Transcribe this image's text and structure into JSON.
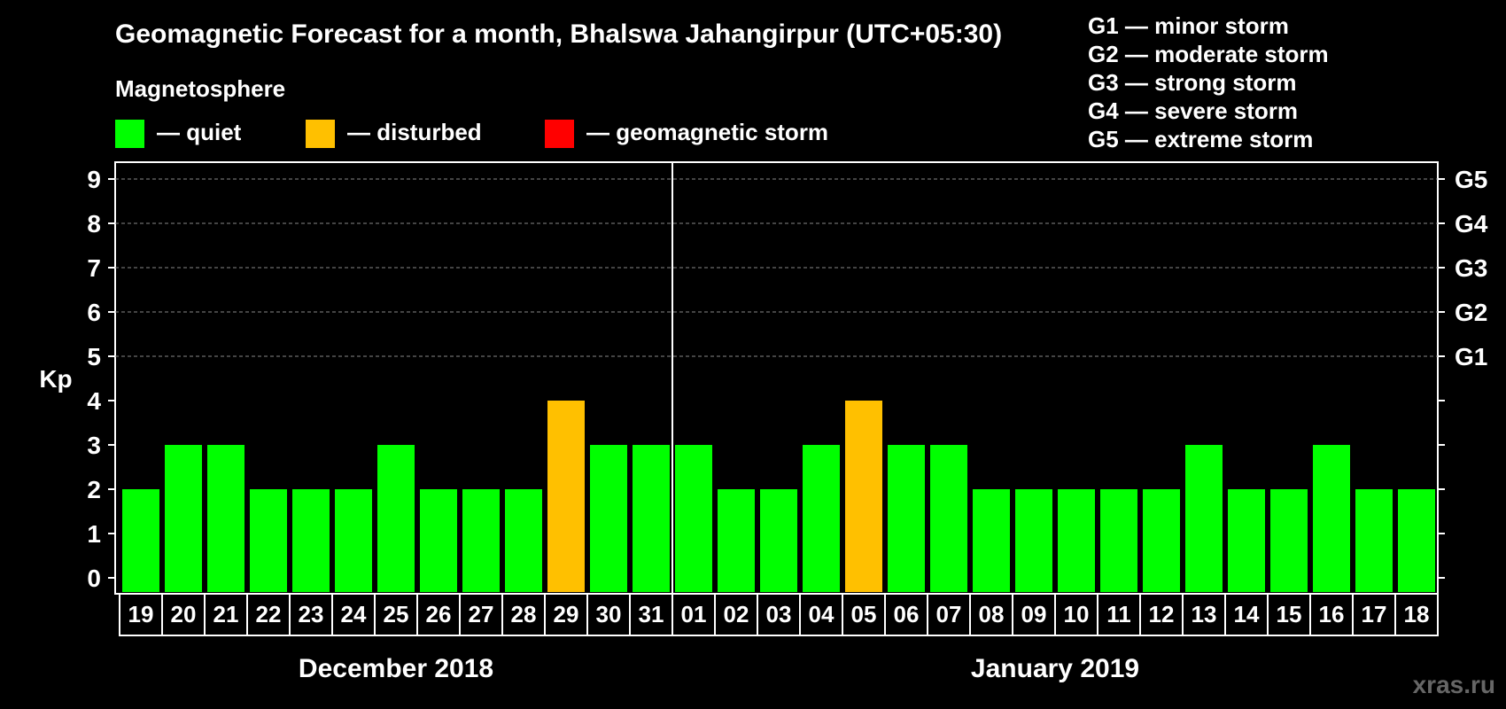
{
  "chart_data": {
    "type": "bar",
    "title": "Geomagnetic Forecast for a month, Bhalswa Jahangirpur (UTC+05:30)",
    "ylabel": "Kp",
    "ylim": [
      0,
      9
    ],
    "yticks": [
      0,
      1,
      2,
      3,
      4,
      5,
      6,
      7,
      8,
      9
    ],
    "right_axis": [
      {
        "kp": 5,
        "label": "G1"
      },
      {
        "kp": 6,
        "label": "G2"
      },
      {
        "kp": 7,
        "label": "G3"
      },
      {
        "kp": 8,
        "label": "G4"
      },
      {
        "kp": 9,
        "label": "G5"
      }
    ],
    "categories": [
      "19",
      "20",
      "21",
      "22",
      "23",
      "24",
      "25",
      "26",
      "27",
      "28",
      "29",
      "30",
      "31",
      "01",
      "02",
      "03",
      "04",
      "05",
      "06",
      "07",
      "08",
      "09",
      "10",
      "11",
      "12",
      "13",
      "14",
      "15",
      "16",
      "17",
      "18"
    ],
    "values": [
      2,
      3,
      3,
      2,
      2,
      2,
      3,
      2,
      2,
      2,
      4,
      3,
      3,
      3,
      2,
      2,
      3,
      4,
      3,
      3,
      2,
      2,
      2,
      2,
      2,
      3,
      2,
      2,
      3,
      2,
      2
    ],
    "month_groups": [
      {
        "label": "December 2018",
        "count": 13
      },
      {
        "label": "January 2019",
        "count": 18
      }
    ],
    "legend": {
      "heading": "Magnetosphere",
      "items": [
        {
          "label": "— quiet",
          "color": "#00ff00"
        },
        {
          "label": "— disturbed",
          "color": "#ffc000"
        },
        {
          "label": "— geomagnetic storm",
          "color": "#ff0000"
        }
      ]
    },
    "storm_scale": [
      "G1 — minor storm",
      "G2 — moderate storm",
      "G3 — strong storm",
      "G4 — severe storm",
      "G5 — extreme storm"
    ],
    "grid": true
  },
  "watermark": "xras.ru"
}
